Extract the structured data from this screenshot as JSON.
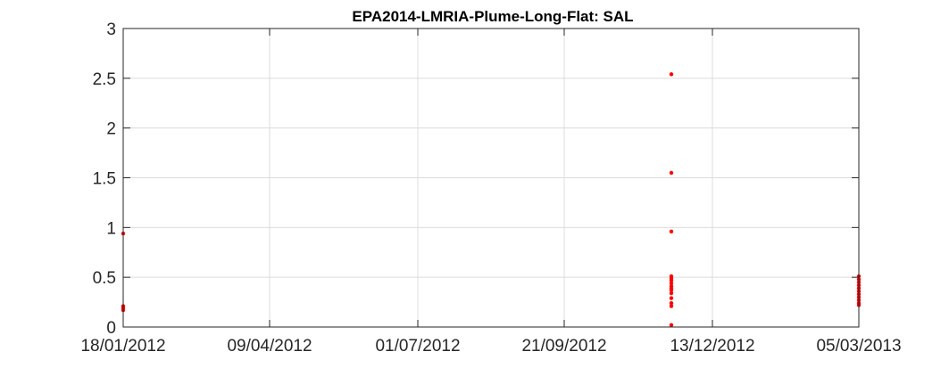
{
  "chart_data": {
    "type": "scatter",
    "title": "EPA2014-LMRIA-Plume-Long-Flat: SAL",
    "xlabel": "",
    "ylabel": "",
    "x_axis_type": "date",
    "xlim": [
      "2012-01-18",
      "2013-03-05"
    ],
    "ylim": [
      0,
      3
    ],
    "x_ticks": [
      {
        "date": "2012-01-18",
        "label": "18/01/2012"
      },
      {
        "date": "2012-04-09",
        "label": "09/04/2012"
      },
      {
        "date": "2012-07-01",
        "label": "01/07/2012"
      },
      {
        "date": "2012-09-21",
        "label": "21/09/2012"
      },
      {
        "date": "2012-12-13",
        "label": "13/12/2012"
      },
      {
        "date": "2013-03-05",
        "label": "05/03/2013"
      }
    ],
    "y_ticks": [
      0,
      0.5,
      1,
      1.5,
      2,
      2.5,
      3
    ],
    "y_tick_labels": [
      "0",
      "0.5",
      "1",
      "1.5",
      "2",
      "2.5",
      "3"
    ],
    "grid": true,
    "marker_color": "#ff0000",
    "series": [
      {
        "points": [
          {
            "x": "2012-01-18",
            "y": 0.94
          },
          {
            "x": "2012-01-18",
            "y": 0.21
          },
          {
            "x": "2012-01-18",
            "y": 0.19
          },
          {
            "x": "2012-01-18",
            "y": 0.17
          },
          {
            "x": "2012-11-20",
            "y": 2.54
          },
          {
            "x": "2012-11-20",
            "y": 1.55
          },
          {
            "x": "2012-11-20",
            "y": 0.96
          },
          {
            "x": "2012-11-20",
            "y": 0.51
          },
          {
            "x": "2012-11-20",
            "y": 0.49
          },
          {
            "x": "2012-11-20",
            "y": 0.47
          },
          {
            "x": "2012-11-20",
            "y": 0.44
          },
          {
            "x": "2012-11-20",
            "y": 0.41
          },
          {
            "x": "2012-11-20",
            "y": 0.39
          },
          {
            "x": "2012-11-20",
            "y": 0.37
          },
          {
            "x": "2012-11-20",
            "y": 0.34
          },
          {
            "x": "2012-11-20",
            "y": 0.29
          },
          {
            "x": "2012-11-20",
            "y": 0.24
          },
          {
            "x": "2012-11-20",
            "y": 0.21
          },
          {
            "x": "2012-11-20",
            "y": 0.02
          },
          {
            "x": "2013-03-05",
            "y": 0.51
          },
          {
            "x": "2013-03-05",
            "y": 0.48
          },
          {
            "x": "2013-03-05",
            "y": 0.45
          },
          {
            "x": "2013-03-05",
            "y": 0.42
          },
          {
            "x": "2013-03-05",
            "y": 0.39
          },
          {
            "x": "2013-03-05",
            "y": 0.36
          },
          {
            "x": "2013-03-05",
            "y": 0.33
          },
          {
            "x": "2013-03-05",
            "y": 0.3
          },
          {
            "x": "2013-03-05",
            "y": 0.27
          },
          {
            "x": "2013-03-05",
            "y": 0.24
          },
          {
            "x": "2013-03-05",
            "y": 0.22
          }
        ]
      }
    ]
  }
}
